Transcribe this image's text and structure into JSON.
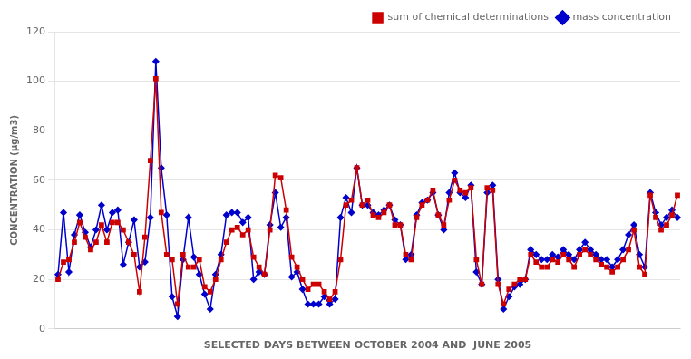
{
  "chart_data": {
    "type": "line",
    "xlabel": "SELECTED DAYS BETWEEN OCTOBER 2004 AND  JUNE 2005",
    "ylabel": "CONCENTRATION (µg/m3)",
    "categories": [
      null,
      null,
      null,
      null,
      null,
      null,
      null,
      null,
      null,
      null,
      null,
      null,
      null,
      null,
      null,
      null,
      null,
      null,
      null,
      null,
      null,
      null,
      null,
      null,
      null,
      null,
      null,
      null,
      null,
      null,
      null,
      null,
      null,
      null,
      null,
      null,
      null,
      null,
      null,
      null,
      null,
      null,
      null,
      null,
      null,
      null,
      null,
      null,
      null,
      null,
      null,
      null,
      null,
      null,
      null,
      null,
      null,
      null,
      null,
      null,
      null,
      null,
      null,
      null,
      null,
      null,
      null,
      null,
      null,
      null,
      null,
      null,
      null,
      null,
      null,
      null,
      null,
      null,
      null,
      null,
      null,
      null,
      null,
      null,
      null,
      null,
      null,
      null,
      null,
      null,
      null,
      null,
      null,
      null,
      null,
      null,
      null,
      null,
      null,
      null,
      null,
      null,
      null,
      null,
      null,
      null,
      null,
      null,
      null,
      null,
      null,
      null,
      null,
      null,
      null
    ],
    "series": [
      {
        "name": "sum of chemical determinations",
        "color": "#cc0000",
        "marker": "square",
        "values": [
          20,
          27,
          28,
          35,
          43,
          37,
          32,
          35,
          42,
          35,
          43,
          43,
          40,
          35,
          30,
          15,
          37,
          68,
          101,
          47,
          30,
          28,
          10,
          30,
          25,
          25,
          28,
          17,
          15,
          20,
          28,
          35,
          40,
          41,
          38,
          40,
          29,
          25,
          22,
          40,
          62,
          61,
          48,
          29,
          25,
          20,
          16,
          18,
          18,
          15,
          12,
          15,
          28,
          50,
          52,
          65,
          50,
          52,
          46,
          45,
          47,
          50,
          42,
          42,
          30,
          28,
          45,
          50,
          52,
          56,
          46,
          42,
          52,
          60,
          56,
          55,
          57,
          28,
          18,
          57,
          56,
          18,
          10,
          16,
          18,
          20,
          20,
          30,
          27,
          25,
          25,
          28,
          27,
          30,
          28,
          25,
          30,
          32,
          30,
          28,
          26,
          25,
          23,
          25,
          28,
          32,
          40,
          25,
          22,
          54,
          45,
          40,
          42,
          46,
          54
        ]
      },
      {
        "name": "mass concentration",
        "color": "#0000cc",
        "marker": "diamond",
        "values": [
          22,
          47,
          23,
          38,
          46,
          39,
          33,
          40,
          50,
          40,
          47,
          48,
          26,
          35,
          44,
          25,
          27,
          45,
          108,
          65,
          46,
          13,
          5,
          28,
          45,
          29,
          22,
          14,
          8,
          22,
          30,
          46,
          47,
          47,
          43,
          45,
          20,
          23,
          22,
          42,
          55,
          41,
          45,
          21,
          23,
          16,
          10,
          10,
          10,
          13,
          10,
          12,
          45,
          53,
          47,
          65,
          50,
          50,
          47,
          46,
          48,
          50,
          44,
          42,
          28,
          30,
          46,
          51,
          52,
          55,
          46,
          40,
          55,
          63,
          55,
          53,
          58,
          23,
          18,
          55,
          58,
          20,
          8,
          13,
          17,
          18,
          20,
          32,
          30,
          28,
          28,
          30,
          29,
          32,
          30,
          28,
          32,
          35,
          32,
          30,
          28,
          28,
          25,
          28,
          32,
          38,
          42,
          30,
          25,
          55,
          47,
          42,
          45,
          48,
          45
        ]
      }
    ],
    "ylim": [
      0,
      120
    ],
    "yticks": [
      0,
      20,
      40,
      60,
      80,
      100,
      120
    ],
    "grid": "y",
    "legend": "upper right",
    "tick_labels": "y"
  }
}
